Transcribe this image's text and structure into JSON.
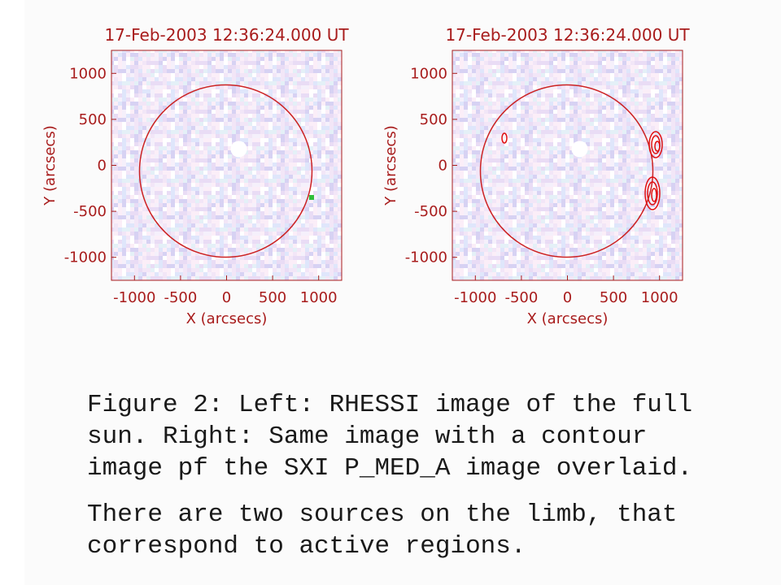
{
  "panels": [
    {
      "title": "17-Feb-2003 12:36:24.000 UT",
      "xlabel": "X (arcsecs)",
      "ylabel": "Y (arcsecs)",
      "xlim": [
        -1250,
        1250
      ],
      "ylim": [
        -1250,
        1250
      ],
      "xticks": [
        -1000,
        -500,
        0,
        500,
        1000
      ],
      "yticks": [
        -1000,
        -500,
        0,
        500,
        1000
      ]
    },
    {
      "title": "17-Feb-2003 12:36:24.000 UT",
      "xlabel": "X (arcsecs)",
      "ylabel": "Y (arcsecs)",
      "xlim": [
        -1250,
        1250
      ],
      "ylim": [
        -1250,
        1250
      ],
      "xticks": [
        -1000,
        -500,
        0,
        500,
        1000
      ],
      "yticks": [
        -1000,
        -500,
        0,
        500,
        1000
      ]
    }
  ],
  "caption": {
    "paragraphs": [
      {
        "lines": [
          "Figure 2: Left: RHESSI image of the full",
          "sun. Right: Same image with a contour",
          "image pf the SXI P_MED_A image overlaid."
        ]
      },
      {
        "lines": [
          "There are two sources on the limb, that",
          "correspond to active regions."
        ]
      }
    ]
  }
}
